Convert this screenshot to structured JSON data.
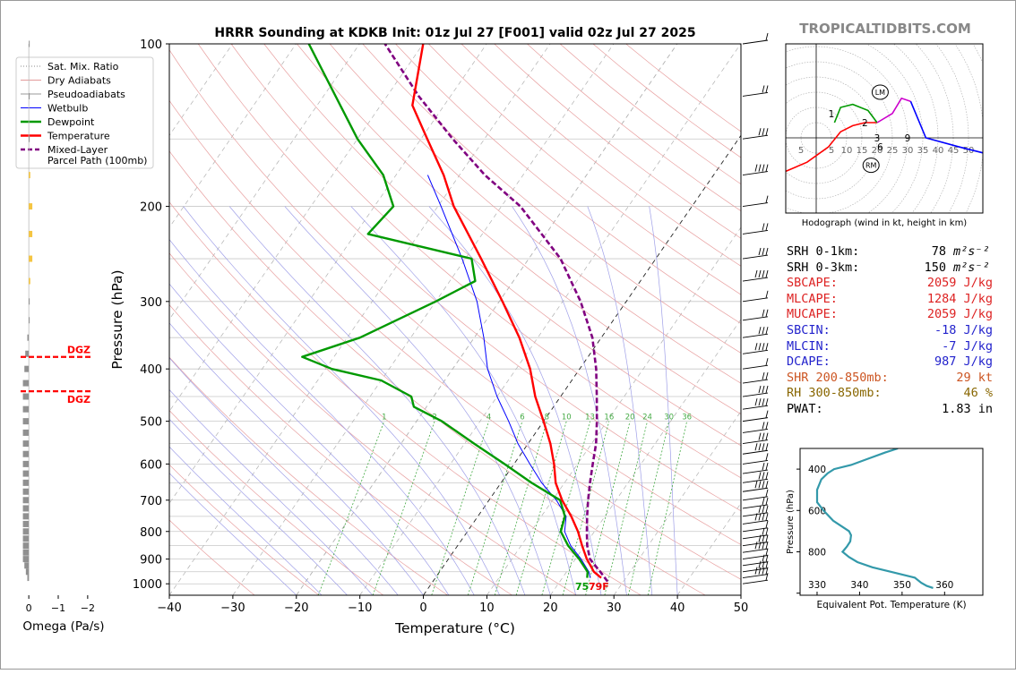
{
  "header": {
    "title": "HRRR Sounding at KDKB Init: 01z Jul 27 [F001] valid 02z Jul 27 2025",
    "brand": "TROPICALTIDBITS.COM"
  },
  "colors": {
    "temperature": "#ff0000",
    "dewpoint": "#009900",
    "wetbulb": "#0000ff",
    "parcel": "#800080",
    "dry_adiabat": "#e8a0a0",
    "moist_adiabat": "#a0a0e8",
    "mix_ratio": "#44aa44",
    "omega_up": "#f5c542",
    "omega_down": "#909090",
    "theta_e": "#3399aa",
    "dgz": "#ff0000",
    "hodo_0_3": "#ff0000",
    "hodo_3_6": "#009900",
    "hodo_6_9": "#cc00cc",
    "hodo_9_plus": "#0000ff",
    "stat_black": "#000000",
    "stat_red": "#dd2222",
    "stat_blue": "#2222cc",
    "stat_orange": "#cc5522",
    "stat_brown": "#886600"
  },
  "legend": [
    {
      "label": "Sat. Mix. Ratio",
      "style": "dotted-gray"
    },
    {
      "label": "Dry Adiabats",
      "style": "thin-pink"
    },
    {
      "label": "Pseudoadiabats",
      "style": "thin-gray"
    },
    {
      "label": "Wetbulb",
      "style": "thin-blue"
    },
    {
      "label": "Dewpoint",
      "style": "green"
    },
    {
      "label": "Temperature",
      "style": "red"
    },
    {
      "label": "Mixed-Layer\nParcel Path (100mb)",
      "style": "dashed-purple"
    }
  ],
  "skewt": {
    "xlabel": "Temperature (°C)",
    "ylabel": "Pressure (hPa)",
    "xticks": [
      "−40",
      "−30",
      "−20",
      "−10",
      "0",
      "10",
      "20",
      "30",
      "40",
      "50"
    ],
    "xtick_values": [
      -40,
      -30,
      -20,
      -10,
      0,
      10,
      20,
      30,
      40,
      50
    ],
    "yticks": [
      "100",
      "200",
      "300",
      "400",
      "500",
      "600",
      "700",
      "800",
      "900",
      "1000"
    ],
    "ytick_values": [
      100,
      200,
      300,
      400,
      500,
      600,
      700,
      800,
      900,
      1000
    ],
    "xlim": [
      -40,
      50
    ],
    "ylim": [
      1050,
      100
    ],
    "mix_ratio_labels": [
      "1",
      "2",
      "4",
      "6",
      "8",
      "10",
      "13",
      "16",
      "20",
      "24",
      "30",
      "36"
    ],
    "mix_ratio_values": [
      1,
      2,
      4,
      6,
      8,
      10,
      13,
      16,
      20,
      24,
      30,
      36
    ],
    "surface_dewpoint_label": "75",
    "surface_temp_label": "79F"
  },
  "omega": {
    "xlabel": "Omega (Pa/s)",
    "xticks": [
      "0",
      "−1",
      "−2"
    ],
    "dgz_label": "DGZ",
    "dgz_top_hpa": 380,
    "dgz_bottom_hpa": 440
  },
  "hodograph": {
    "caption": "Hodograph (wind in kt, height in km)",
    "ring_labels": [
      "5",
      "5",
      "10",
      "15",
      "20",
      "25",
      "30",
      "35",
      "40",
      "45",
      "50"
    ],
    "height_labels": [
      "1",
      "2",
      "3",
      "6",
      "9"
    ],
    "storm_markers": [
      "LM",
      "RM"
    ]
  },
  "stats": [
    {
      "label": "SRH 0-1km:",
      "value": "78",
      "unit": "m²s⁻²",
      "color": "#000000"
    },
    {
      "label": "SRH 0-3km:",
      "value": "150",
      "unit": "m²s⁻²",
      "color": "#000000"
    },
    {
      "label": "SBCAPE:",
      "value": "2059 J/kg",
      "unit": "",
      "color": "#dd2222"
    },
    {
      "label": "MLCAPE:",
      "value": "1284 J/kg",
      "unit": "",
      "color": "#dd2222"
    },
    {
      "label": "MUCAPE:",
      "value": "2059 J/kg",
      "unit": "",
      "color": "#dd2222"
    },
    {
      "label": "SBCIN:",
      "value": "-18 J/kg",
      "unit": "",
      "color": "#2222cc"
    },
    {
      "label": "MLCIN:",
      "value": "-7 J/kg",
      "unit": "",
      "color": "#2222cc"
    },
    {
      "label": "DCAPE:",
      "value": "987 J/kg",
      "unit": "",
      "color": "#2222cc"
    },
    {
      "label": "SHR 200-850mb:",
      "value": "29 kt",
      "unit": "",
      "color": "#cc5522"
    },
    {
      "label": "RH 300-850mb:",
      "value": "46 %",
      "unit": "",
      "color": "#886600"
    },
    {
      "label": "PWAT:",
      "value": "1.83 in",
      "unit": "",
      "color": "#000000"
    }
  ],
  "theta_e": {
    "xlabel": "Equivalent Pot. Temperature (K)",
    "ylabel": "Pressure (hPa)",
    "xticks": [
      "330",
      "340",
      "350",
      "360"
    ],
    "xtick_values": [
      330,
      340,
      350,
      360
    ],
    "yticks": [
      "400",
      "600",
      "800"
    ],
    "ytick_values": [
      400,
      600,
      800
    ],
    "xlim": [
      326,
      369
    ],
    "ylim": [
      1010,
      300
    ]
  },
  "chart_data": [
    {
      "type": "line",
      "title": "HRRR Sounding at KDKB Init: 01z Jul 27 [F001] valid 02z Jul 27 2025",
      "xlabel": "Temperature (°C)",
      "ylabel": "Pressure (hPa)",
      "xlim": [
        -40,
        50
      ],
      "ylim": [
        1050,
        100
      ],
      "log_y": true,
      "skew": true,
      "series": [
        {
          "name": "Temperature",
          "points": [
            [
              975,
              26.1
            ],
            [
              950,
              24.3
            ],
            [
              900,
              21.8
            ],
            [
              850,
              19.6
            ],
            [
              800,
              17.4
            ],
            [
              750,
              14.7
            ],
            [
              700,
              11.5
            ],
            [
              650,
              8.6
            ],
            [
              600,
              6.3
            ],
            [
              550,
              3.5
            ],
            [
              500,
              0.0
            ],
            [
              450,
              -4.0
            ],
            [
              400,
              -7.8
            ],
            [
              350,
              -12.9
            ],
            [
              300,
              -19.5
            ],
            [
              250,
              -27.5
            ],
            [
              200,
              -37.5
            ],
            [
              175,
              -42.5
            ],
            [
              150,
              -49.0
            ],
            [
              130,
              -55.0
            ],
            [
              100,
              -60.0
            ]
          ]
        },
        {
          "name": "Dewpoint",
          "points": [
            [
              975,
              23.9
            ],
            [
              950,
              23.3
            ],
            [
              900,
              20.6
            ],
            [
              850,
              17.4
            ],
            [
              800,
              14.7
            ],
            [
              750,
              13.7
            ],
            [
              700,
              11.2
            ],
            [
              650,
              4.8
            ],
            [
              600,
              -1.5
            ],
            [
              550,
              -8.5
            ],
            [
              500,
              -16.0
            ],
            [
              470,
              -22.0
            ],
            [
              450,
              -23.5
            ],
            [
              420,
              -30.0
            ],
            [
              400,
              -39.0
            ],
            [
              380,
              -45.0
            ],
            [
              350,
              -38.0
            ],
            [
              300,
              -30.0
            ],
            [
              275,
              -26.0
            ],
            [
              250,
              -29.0
            ],
            [
              225,
              -48.0
            ],
            [
              200,
              -47.0
            ],
            [
              175,
              -52.0
            ],
            [
              150,
              -60.0
            ],
            [
              100,
              -78.0
            ]
          ]
        },
        {
          "name": "Wetbulb",
          "points": [
            [
              975,
              24.4
            ],
            [
              950,
              23.5
            ],
            [
              900,
              20.9
            ],
            [
              850,
              17.8
            ],
            [
              800,
              15.3
            ],
            [
              750,
              13.9
            ],
            [
              700,
              10.6
            ],
            [
              650,
              6.4
            ],
            [
              600,
              2.5
            ],
            [
              550,
              -1.6
            ],
            [
              500,
              -5.5
            ],
            [
              450,
              -10.0
            ],
            [
              400,
              -14.5
            ],
            [
              350,
              -18.5
            ],
            [
              300,
              -23.5
            ],
            [
              250,
              -30.5
            ],
            [
              200,
              -39.5
            ],
            [
              175,
              -45.0
            ]
          ]
        },
        {
          "name": "Mixed-Layer Parcel Path (100mb)",
          "points": [
            [
              990,
              27.5
            ],
            [
              950,
              25.3
            ],
            [
              900,
              22.3
            ],
            [
              850,
              20.4
            ],
            [
              800,
              18.8
            ],
            [
              750,
              17.2
            ],
            [
              700,
              15.6
            ],
            [
              650,
              14.0
            ],
            [
              600,
              12.4
            ],
            [
              550,
              10.7
            ],
            [
              500,
              8.4
            ],
            [
              450,
              5.7
            ],
            [
              400,
              2.6
            ],
            [
              350,
              -1.4
            ],
            [
              300,
              -7.2
            ],
            [
              250,
              -15.0
            ],
            [
              200,
              -27.0
            ],
            [
              175,
              -36.0
            ],
            [
              150,
              -45.0
            ],
            [
              125,
              -55.0
            ],
            [
              100,
              -66.0
            ]
          ]
        }
      ]
    },
    {
      "type": "bar",
      "xlabel": "Omega (Pa/s)",
      "xlim": [
        0.4,
        -2.4
      ],
      "pressure_hpa": [
        975,
        950,
        925,
        900,
        875,
        850,
        825,
        800,
        775,
        750,
        725,
        700,
        675,
        650,
        625,
        600,
        575,
        550,
        525,
        500,
        475,
        450,
        425,
        400,
        375,
        350,
        325,
        300,
        275,
        250,
        225,
        200,
        175,
        150,
        125,
        100
      ],
      "values": [
        0.05,
        0.1,
        0.15,
        0.2,
        0.2,
        0.2,
        0.2,
        0.2,
        0.2,
        0.2,
        0.2,
        0.2,
        0.2,
        0.2,
        0.2,
        0.2,
        0.2,
        0.2,
        0.2,
        0.2,
        0.2,
        0.2,
        0.2,
        0.15,
        0.12,
        0.05,
        0.0,
        0.0,
        -0.05,
        -0.12,
        -0.12,
        -0.12,
        -0.05,
        0.0,
        0.0,
        0.0
      ]
    },
    {
      "type": "line",
      "title": "Hodograph (wind in kt, height in km)",
      "range_kt": 55,
      "series": [
        {
          "name": "0-3 km",
          "points": [
            [
              20,
              -5
            ],
            [
              16,
              -5
            ],
            [
              12,
              -4
            ],
            [
              8,
              -2
            ],
            [
              4,
              3
            ],
            [
              -3,
              8
            ],
            [
              -10,
              11
            ],
            [
              -17,
              9
            ],
            [
              -18,
              3
            ]
          ]
        },
        {
          "name": "3-6 km",
          "points": [
            [
              20,
              -5
            ],
            [
              17,
              -9
            ],
            [
              12,
              -11
            ],
            [
              8,
              -10
            ],
            [
              6,
              -5
            ]
          ]
        },
        {
          "name": "6-9 km",
          "points": [
            [
              20,
              -5
            ],
            [
              25,
              -8
            ],
            [
              28,
              -13
            ],
            [
              31,
              -12
            ]
          ]
        },
        {
          "name": "9+ km",
          "points": [
            [
              31,
              -12
            ],
            [
              36,
              0
            ],
            [
              47,
              3
            ],
            [
              55,
              5
            ],
            [
              59,
              14
            ],
            [
              58,
              13
            ],
            [
              55,
              12
            ]
          ]
        }
      ],
      "storm_motion": {
        "LM": [
          8,
          15
        ],
        "RM": [
          5,
          -9
        ]
      }
    },
    {
      "type": "line",
      "title": "",
      "xlabel": "Equivalent Pot. Temperature (K)",
      "ylabel": "Pressure (hPa)",
      "xlim": [
        326,
        369
      ],
      "ylim": [
        1010,
        300
      ],
      "series": [
        {
          "name": "Equivalent Pot. Temperature",
          "points": [
            [
              357.3,
              975
            ],
            [
              355.8,
              965
            ],
            [
              354.5,
              950
            ],
            [
              353.0,
              925
            ],
            [
              348.0,
              900
            ],
            [
              343.0,
              875
            ],
            [
              339.5,
              850
            ],
            [
              337.5,
              825
            ],
            [
              336.0,
              800
            ],
            [
              337.0,
              775
            ],
            [
              337.8,
              750
            ],
            [
              338.0,
              720
            ],
            [
              337.5,
              700
            ],
            [
              333.8,
              650
            ],
            [
              331.5,
              600
            ],
            [
              330.0,
              560
            ],
            [
              330.0,
              500
            ],
            [
              331.0,
              450
            ],
            [
              332.5,
              420
            ],
            [
              334.0,
              400
            ],
            [
              338.0,
              380
            ],
            [
              342.0,
              350
            ],
            [
              346.0,
              320
            ],
            [
              349.0,
              300
            ]
          ]
        }
      ]
    }
  ]
}
